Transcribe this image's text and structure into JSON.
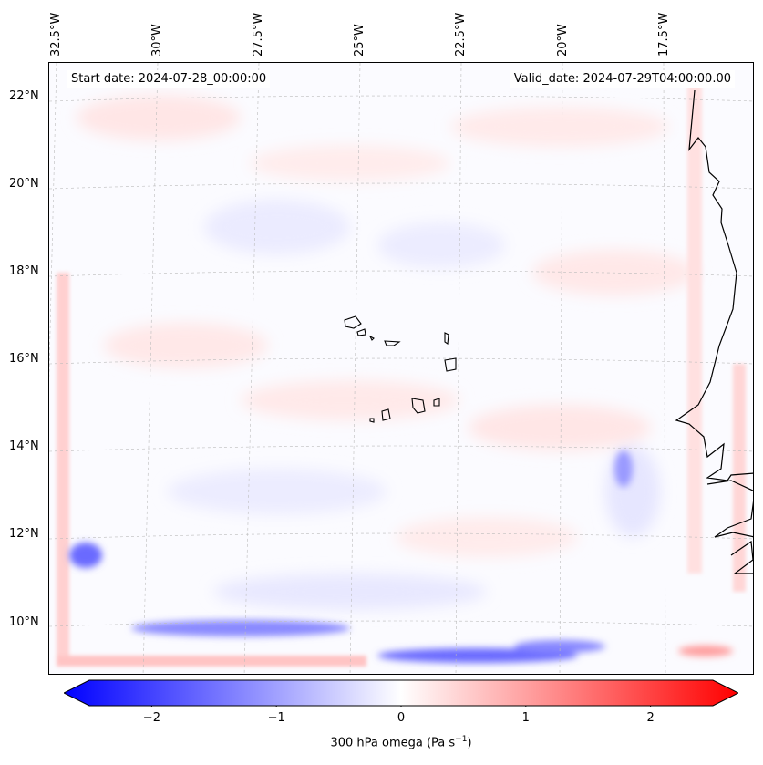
{
  "map": {
    "start_date": "Start date: 2024-07-28_00:00:00",
    "valid_date": "Valid_date: 2024-07-29T04:00:00.00",
    "lon_labels": [
      "32.5°W",
      "30°W",
      "27.5°W",
      "25°W",
      "22.5°W",
      "20°W",
      "17.5°W"
    ],
    "lat_labels": [
      "22°N",
      "20°N",
      "18°N",
      "16°N",
      "14°N",
      "12°N",
      "10°N"
    ]
  },
  "colorbar": {
    "title": "300 hPa omega (Pa s",
    "title_sup": "−1",
    "title_end": ")",
    "ticks": [
      "−2",
      "−1",
      "0",
      "1",
      "2"
    ],
    "tick_values": [
      -2,
      -1,
      0,
      1,
      2
    ],
    "vmin": -2.5,
    "vmax": 2.5,
    "negative_color": "#0000ff",
    "positive_color": "#ff0000"
  }
}
